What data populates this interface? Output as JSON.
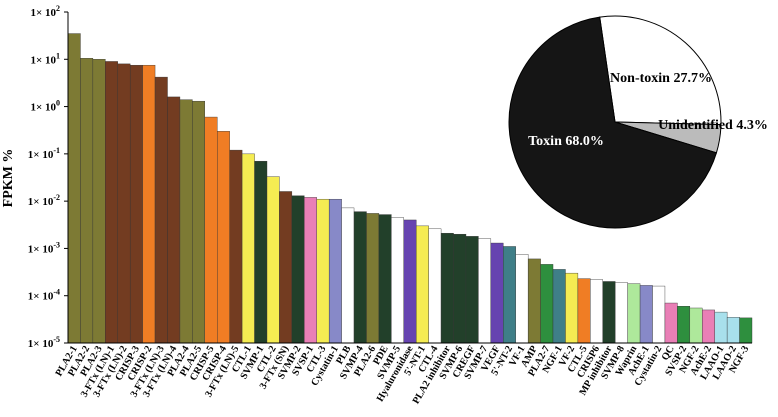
{
  "chart_data": [
    {
      "type": "bar",
      "ylabel": "FPKM %",
      "yscale": "log",
      "ylim": [
        1e-05,
        100
      ],
      "ytick_labels": [
        "1× 10^2",
        "1× 10^1",
        "1× 10^0",
        "1× 10^-1",
        "1× 10^-2",
        "1× 10^-3",
        "1× 10^-4",
        "1× 10^-5"
      ],
      "categories": [
        "PLA2-1",
        "PLA2-2",
        "PLA2-3",
        "3-FTx (LN)-1",
        "3-FTx (LN)-2",
        "CRISP-3",
        "CRISP-2",
        "3-FTx (LN)-3",
        "3-FTx (LN)-4",
        "PLA2-4",
        "PLA2-5",
        "CRISP-5",
        "CRISP-4",
        "3-FTx (LN)-5",
        "CTL-1",
        "SVMP-1",
        "CTL-2",
        "3-FTx (SN)",
        "SVMP-2",
        "SVSP-1",
        "CTL-3",
        "Cystatin-1",
        "PLB",
        "SVMP-4",
        "PLA2-6",
        "PDE",
        "SVMP-5",
        "Hyaluronidase",
        "5'-NT-1",
        "CTL-4",
        "PLA2 inhibitor",
        "SVMP-6",
        "CREGF",
        "SVMP-7",
        "VEGF",
        "5'-NT-2",
        "VF-1",
        "AMP",
        "PLA2-7",
        "NGF-1",
        "VF-2",
        "CTL-5",
        "CRISP6",
        "MP inhibitor",
        "SVMP-8",
        "Waprin",
        "AchE-1",
        "Cystatin-2",
        "QC",
        "SVSP-2",
        "NGF-2",
        "AchE-2",
        "LAAO-1",
        "LAAO-2",
        "NGF-3"
      ],
      "values": [
        35,
        10.5,
        10,
        9,
        8,
        7.5,
        7.5,
        4.2,
        1.6,
        1.4,
        1.3,
        0.6,
        0.3,
        0.12,
        0.1,
        0.07,
        0.033,
        0.016,
        0.013,
        0.012,
        0.011,
        0.011,
        0.0072,
        0.006,
        0.0055,
        0.0052,
        0.0045,
        0.004,
        0.003,
        0.0026,
        0.0021,
        0.002,
        0.0018,
        0.0016,
        0.0013,
        0.0011,
        0.00075,
        0.0006,
        0.00046,
        0.00036,
        0.0003,
        0.00023,
        0.00022,
        0.0002,
        0.00019,
        0.00018,
        0.000165,
        0.00016,
        7e-05,
        6e-05,
        5.5e-05,
        5e-05,
        4.5e-05,
        3.5e-05,
        3.4e-05
      ],
      "colors": [
        "#7d7a34",
        "#7d7a34",
        "#7d7a34",
        "#733c21",
        "#733c21",
        "#733c21",
        "#f07d24",
        "#733c21",
        "#733c21",
        "#7d7a34",
        "#7d7a34",
        "#f07d24",
        "#f07d24",
        "#733c21",
        "#f5ec52",
        "#22402a",
        "#f5ec52",
        "#733c21",
        "#22402a",
        "#e97fb6",
        "#f5ec52",
        "#8789c8",
        "#ffffff",
        "#22402a",
        "#7d7a34",
        "#22402a",
        "#ffffff",
        "#6644b0",
        "#f5ec52",
        "#ffffff",
        "#22402a",
        "#22402a",
        "#22402a",
        "#ffffff",
        "#6644b0",
        "#3f7f88",
        "#ffffff",
        "#7d7a34",
        "#2e8f3e",
        "#3f7f88",
        "#f5ec52",
        "#f07d24",
        "#ffffff",
        "#22402a",
        "#ffffff",
        "#aee89b",
        "#8789c8",
        "#ffffff",
        "#e97fb6",
        "#2e8f3e",
        "#aee89b",
        "#e97fb6",
        "#a8e0ec",
        "#a8e0ec",
        "#2e8f3e"
      ]
    },
    {
      "type": "pie",
      "slices": [
        {
          "label": "Toxin 68.0%",
          "value": 68.0,
          "color": "#151515"
        },
        {
          "label": "Non-toxin 27.7%",
          "value": 27.7,
          "color": "#ffffff"
        },
        {
          "label": "Unidentified 4.3%",
          "value": 4.3,
          "color": "#bbbbbb"
        }
      ]
    }
  ]
}
